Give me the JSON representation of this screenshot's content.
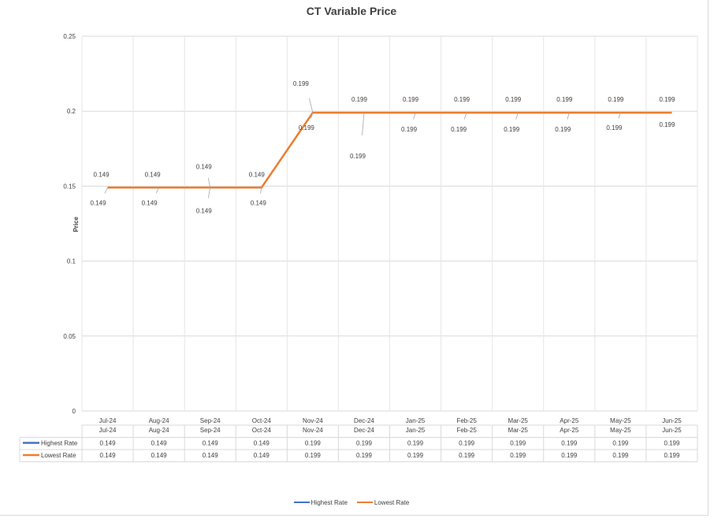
{
  "chart_data": {
    "type": "line",
    "title": "CT Variable Price",
    "ylabel": "Price",
    "xlabel": "",
    "ylim": [
      0,
      0.25
    ],
    "yticks": [
      0,
      0.05,
      0.1,
      0.15,
      0.2,
      0.25
    ],
    "ytick_labels": [
      "0",
      "0.05",
      "0.1",
      "0.15",
      "0.2",
      "0.25"
    ],
    "categories": [
      "Jul-24",
      "Aug-24",
      "Sep-24",
      "Oct-24",
      "Nov-24",
      "Dec-24",
      "Jan-25",
      "Feb-25",
      "Mar-25",
      "Apr-25",
      "May-25",
      "Jun-25"
    ],
    "series": [
      {
        "name": "Highest Rate",
        "color": "#4472c4",
        "values": [
          0.149,
          0.149,
          0.149,
          0.149,
          0.199,
          0.199,
          0.199,
          0.199,
          0.199,
          0.199,
          0.199,
          0.199
        ],
        "value_labels": [
          "0.149",
          "0.149",
          "0.149",
          "0.149",
          "0.199",
          "0.199",
          "0.199",
          "0.199",
          "0.199",
          "0.199",
          "0.199",
          "0.199"
        ]
      },
      {
        "name": "Lowest Rate",
        "color": "#ed7d31",
        "values": [
          0.149,
          0.149,
          0.149,
          0.149,
          0.199,
          0.199,
          0.199,
          0.199,
          0.199,
          0.199,
          0.199,
          0.199
        ],
        "value_labels": [
          "0.149",
          "0.149",
          "0.149",
          "0.149",
          "0.199",
          "0.199",
          "0.199",
          "0.199",
          "0.199",
          "0.199",
          "0.199",
          "0.199"
        ]
      }
    ],
    "grid": true,
    "data_table": true,
    "legend": "bottom"
  }
}
